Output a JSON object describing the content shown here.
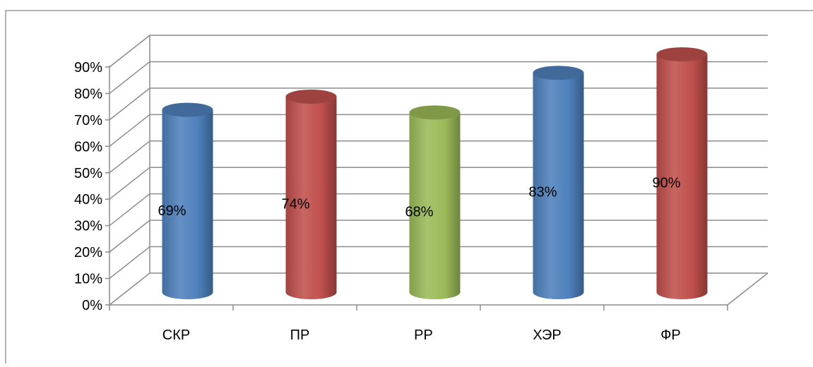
{
  "chart_data": {
    "type": "bar",
    "categories": [
      "СКР",
      "ПР",
      "РР",
      "ХЭР",
      "ФР"
    ],
    "values": [
      0.69,
      0.74,
      0.68,
      0.83,
      0.9
    ],
    "data_labels": [
      "69%",
      "74%",
      "68%",
      "83%",
      "90%"
    ],
    "y_ticks": [
      "0%",
      "10%",
      "20%",
      "30%",
      "40%",
      "50%",
      "60%",
      "70%",
      "80%",
      "90%"
    ],
    "ylim": [
      0,
      0.9
    ],
    "grid": true,
    "legend": "none",
    "bar_style": "3d-cylinder",
    "bar_colors": [
      "#4f81bd",
      "#c0504d",
      "#9bbb59",
      "#4f81bd",
      "#c0504d"
    ],
    "title": "",
    "xlabel": "",
    "ylabel": ""
  }
}
